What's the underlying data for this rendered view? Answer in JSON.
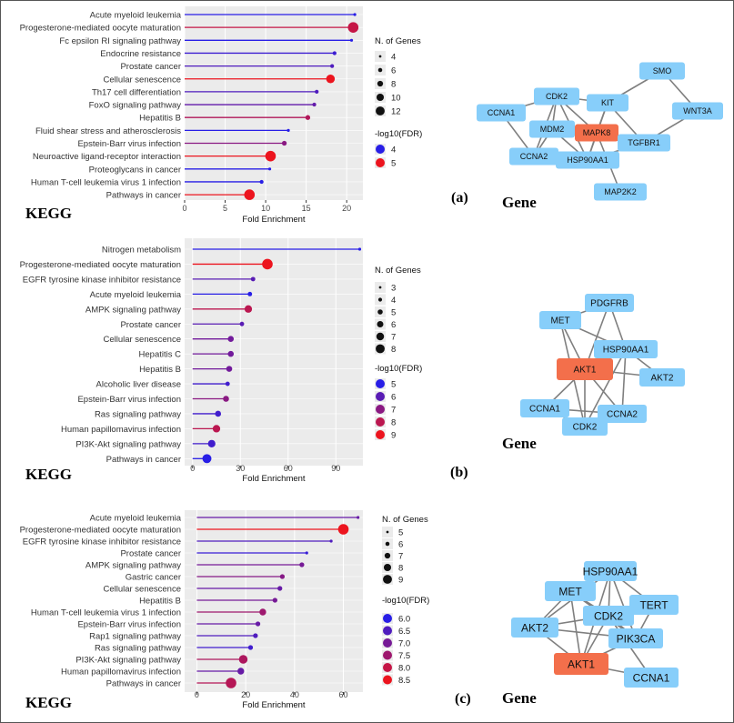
{
  "colors": {
    "panel_bg": "#ebebeb",
    "grid": "#ffffff",
    "node": "#87cefa",
    "node_hub": "#f36f4b",
    "edge": "#7f7f7f"
  },
  "panels": [
    {
      "label": "(a)",
      "kegg": "KEGG",
      "gene": "Gene",
      "chart_data": {
        "type": "lollipop",
        "xlabel": "Fold Enrichment",
        "xlim": [
          0,
          22
        ],
        "xticks": [
          0,
          5,
          10,
          15,
          20
        ],
        "xtick_labels": [
          "0",
          "5",
          "10",
          "15",
          "20"
        ],
        "categories": [
          "Acute myeloid leukemia",
          "Progesterone-mediated oocyte maturation",
          "Fc epsilon RI signaling pathway",
          "Endocrine resistance",
          "Prostate cancer",
          "Cellular senescence",
          "Th17 cell differentiation",
          "FoxO signaling pathway",
          "Hepatitis B",
          "Fluid shear stress and atherosclerosis",
          "Epstein-Barr virus infection",
          "Neuroactive ligand-receptor interaction",
          "Proteoglycans in cancer",
          "Human T-cell leukemia virus 1 infection",
          "Pathways in cancer"
        ],
        "values": [
          21.0,
          20.8,
          20.6,
          18.5,
          18.2,
          18.0,
          16.3,
          16.0,
          15.2,
          12.8,
          12.3,
          10.6,
          10.5,
          9.5,
          8.0
        ],
        "n_genes": [
          4,
          12,
          4,
          5,
          5,
          10,
          5,
          5,
          6,
          4,
          6,
          12,
          4,
          5,
          12
        ],
        "fdr": [
          3.8,
          4.8,
          3.7,
          4.1,
          4.2,
          5.3,
          4.2,
          4.3,
          4.7,
          3.7,
          4.5,
          5.4,
          3.8,
          4.0,
          5.5
        ],
        "size_legend": {
          "title": "N. of Genes",
          "values": [
            4,
            6,
            8,
            10,
            12
          ],
          "labels": [
            "4",
            "6",
            "8",
            "10",
            "12"
          ]
        },
        "color_legend": {
          "title": "-log10(FDR)",
          "values": [
            4,
            5
          ],
          "labels": [
            "4",
            "5"
          ]
        }
      },
      "network": {
        "nodes": [
          {
            "id": "SMO",
            "label": "SMO"
          },
          {
            "id": "CDK2",
            "label": "CDK2"
          },
          {
            "id": "KIT",
            "label": "KIT"
          },
          {
            "id": "CCNA1",
            "label": "CCNA1"
          },
          {
            "id": "WNT3A",
            "label": "WNT3A"
          },
          {
            "id": "MDM2",
            "label": "MDM2"
          },
          {
            "id": "MAPK8",
            "label": "MAPK8",
            "hub": true
          },
          {
            "id": "TGFBR1",
            "label": "TGFBR1"
          },
          {
            "id": "CCNA2",
            "label": "CCNA2"
          },
          {
            "id": "HSP90AA1",
            "label": "HSP90AA1"
          },
          {
            "id": "MAP2K2",
            "label": "MAP2K2"
          }
        ],
        "edges": [
          [
            "SMO",
            "KIT"
          ],
          [
            "SMO",
            "WNT3A"
          ],
          [
            "WNT3A",
            "TGFBR1"
          ],
          [
            "CCNA1",
            "CDK2"
          ],
          [
            "CCNA1",
            "CCNA2"
          ],
          [
            "CDK2",
            "KIT"
          ],
          [
            "CDK2",
            "MDM2"
          ],
          [
            "CDK2",
            "MAPK8"
          ],
          [
            "CDK2",
            "HSP90AA1"
          ],
          [
            "CDK2",
            "CCNA2"
          ],
          [
            "KIT",
            "MAPK8"
          ],
          [
            "KIT",
            "HSP90AA1"
          ],
          [
            "KIT",
            "TGFBR1"
          ],
          [
            "MDM2",
            "MAPK8"
          ],
          [
            "MDM2",
            "HSP90AA1"
          ],
          [
            "MDM2",
            "CCNA2"
          ],
          [
            "MAPK8",
            "HSP90AA1"
          ],
          [
            "MAPK8",
            "TGFBR1"
          ],
          [
            "MAPK8",
            "MAP2K2"
          ],
          [
            "HSP90AA1",
            "CCNA2"
          ],
          [
            "HSP90AA1",
            "TGFBR1"
          ]
        ]
      }
    },
    {
      "label": "(b)",
      "kegg": "KEGG",
      "gene": "Gene",
      "chart_data": {
        "type": "lollipop",
        "xlabel": "Fold Enrichment",
        "xlim": [
          -5,
          107
        ],
        "xticks": [
          0,
          30,
          60,
          90
        ],
        "xtick_labels": [
          "0",
          "30",
          "60",
          "90"
        ],
        "categories": [
          "Nitrogen metabolism",
          "Progesterone-mediated oocyte maturation",
          "EGFR tyrosine kinase inhibitor resistance",
          "Acute myeloid leukemia",
          "AMPK signaling pathway",
          "Prostate cancer",
          "Cellular senescence",
          "Hepatitis C",
          "Hepatitis B",
          "Alcoholic liver disease",
          "Epstein-Barr virus infection",
          "Ras signaling pathway",
          "Human papillomavirus infection",
          "PI3K-Akt signaling pathway",
          "Pathways in cancer"
        ],
        "values": [
          105,
          47,
          38,
          36,
          35,
          31,
          24,
          24,
          23,
          22,
          21,
          16,
          15,
          12,
          9
        ],
        "n_genes": [
          3,
          8,
          4,
          4,
          6,
          4,
          5,
          5,
          5,
          4,
          5,
          5,
          6,
          6,
          7
        ],
        "fdr": [
          5.0,
          9.0,
          6.0,
          5.0,
          8.0,
          6.0,
          6.5,
          6.5,
          6.5,
          5.5,
          7.0,
          5.5,
          8.0,
          5.5,
          5.0
        ],
        "size_legend": {
          "title": "N. of Genes",
          "values": [
            3,
            4,
            5,
            6,
            7,
            8
          ],
          "labels": [
            "3",
            "4",
            "5",
            "6",
            "7",
            "8"
          ]
        },
        "color_legend": {
          "title": "-log10(FDR)",
          "values": [
            5,
            6,
            7,
            8,
            9
          ],
          "labels": [
            "5",
            "6",
            "7",
            "8",
            "9"
          ]
        }
      },
      "network": {
        "nodes": [
          {
            "id": "PDGFRB",
            "label": "PDGFRB"
          },
          {
            "id": "MET",
            "label": "MET"
          },
          {
            "id": "HSP90AA1",
            "label": "HSP90AA1"
          },
          {
            "id": "AKT1",
            "label": "AKT1",
            "hub": true
          },
          {
            "id": "AKT2",
            "label": "AKT2"
          },
          {
            "id": "CCNA1",
            "label": "CCNA1"
          },
          {
            "id": "CCNA2",
            "label": "CCNA2"
          },
          {
            "id": "CDK2",
            "label": "CDK2"
          }
        ],
        "edges": [
          [
            "PDGFRB",
            "MET"
          ],
          [
            "PDGFRB",
            "HSP90AA1"
          ],
          [
            "PDGFRB",
            "AKT1"
          ],
          [
            "MET",
            "HSP90AA1"
          ],
          [
            "MET",
            "AKT1"
          ],
          [
            "MET",
            "CDK2"
          ],
          [
            "HSP90AA1",
            "AKT1"
          ],
          [
            "HSP90AA1",
            "AKT2"
          ],
          [
            "HSP90AA1",
            "CCNA2"
          ],
          [
            "HSP90AA1",
            "CDK2"
          ],
          [
            "AKT1",
            "AKT2"
          ],
          [
            "AKT1",
            "CCNA1"
          ],
          [
            "AKT1",
            "CCNA2"
          ],
          [
            "AKT1",
            "CDK2"
          ],
          [
            "CCNA1",
            "CCNA2"
          ],
          [
            "CCNA1",
            "CDK2"
          ],
          [
            "CCNA2",
            "CDK2"
          ]
        ]
      }
    },
    {
      "label": "(c)",
      "kegg": "KEGG",
      "gene": "Gene",
      "chart_data": {
        "type": "lollipop",
        "xlabel": "Fold Enrichment",
        "xlim": [
          -5,
          68
        ],
        "xticks": [
          0,
          20,
          40,
          60
        ],
        "xtick_labels": [
          "0",
          "20",
          "40",
          "60"
        ],
        "categories": [
          "Acute myeloid leukemia",
          "Progesterone-mediated oocyte maturation",
          "EGFR tyrosine kinase inhibitor resistance",
          "Prostate cancer",
          "AMPK signaling pathway",
          "Gastric cancer",
          "Cellular senescence",
          "Hepatitis B",
          "Human T-cell leukemia virus 1 infection",
          "Epstein-Barr virus infection",
          "Rap1 signaling pathway",
          "Ras signaling pathway",
          "PI3K-Akt signaling pathway",
          "Human papillomavirus infection",
          "Pathways in cancer"
        ],
        "values": [
          66,
          60,
          55,
          45,
          43,
          35,
          34,
          32,
          27,
          25,
          24,
          22,
          19,
          18,
          14
        ],
        "n_genes": [
          5,
          9,
          5,
          5,
          6,
          6,
          6,
          6,
          7,
          6,
          6,
          6,
          8,
          7,
          9
        ],
        "fdr": [
          6.8,
          8.5,
          6.5,
          6.2,
          7.0,
          7.2,
          6.8,
          7.0,
          7.5,
          6.8,
          6.5,
          6.3,
          7.7,
          6.8,
          7.8
        ],
        "size_legend": {
          "title": "N. of Genes",
          "values": [
            5,
            6,
            7,
            8,
            9
          ],
          "labels": [
            "5",
            "6",
            "7",
            "8",
            "9"
          ]
        },
        "color_legend": {
          "title": "-log10(FDR)",
          "values": [
            6.0,
            6.5,
            7.0,
            7.5,
            8.0,
            8.5
          ],
          "labels": [
            "6.0",
            "6.5",
            "7.0",
            "7.5",
            "8.0",
            "8.5"
          ]
        }
      },
      "network": {
        "nodes": [
          {
            "id": "HSP90AA1",
            "label": "HSP90AA1"
          },
          {
            "id": "MET",
            "label": "MET"
          },
          {
            "id": "TERT",
            "label": "TERT"
          },
          {
            "id": "CDK2",
            "label": "CDK2"
          },
          {
            "id": "AKT2",
            "label": "AKT2"
          },
          {
            "id": "PIK3CA",
            "label": "PIK3CA"
          },
          {
            "id": "AKT1",
            "label": "AKT1",
            "hub": true
          },
          {
            "id": "CCNA1",
            "label": "CCNA1"
          }
        ],
        "edges": [
          [
            "HSP90AA1",
            "MET"
          ],
          [
            "HSP90AA1",
            "TERT"
          ],
          [
            "HSP90AA1",
            "CDK2"
          ],
          [
            "HSP90AA1",
            "PIK3CA"
          ],
          [
            "HSP90AA1",
            "AKT1"
          ],
          [
            "HSP90AA1",
            "AKT2"
          ],
          [
            "MET",
            "CDK2"
          ],
          [
            "MET",
            "AKT2"
          ],
          [
            "MET",
            "PIK3CA"
          ],
          [
            "MET",
            "AKT1"
          ],
          [
            "TERT",
            "CDK2"
          ],
          [
            "TERT",
            "PIK3CA"
          ],
          [
            "CDK2",
            "AKT2"
          ],
          [
            "CDK2",
            "PIK3CA"
          ],
          [
            "CDK2",
            "AKT1"
          ],
          [
            "CDK2",
            "CCNA1"
          ],
          [
            "AKT2",
            "PIK3CA"
          ],
          [
            "AKT2",
            "AKT1"
          ],
          [
            "PIK3CA",
            "AKT1"
          ],
          [
            "AKT1",
            "CCNA1"
          ]
        ]
      }
    }
  ]
}
